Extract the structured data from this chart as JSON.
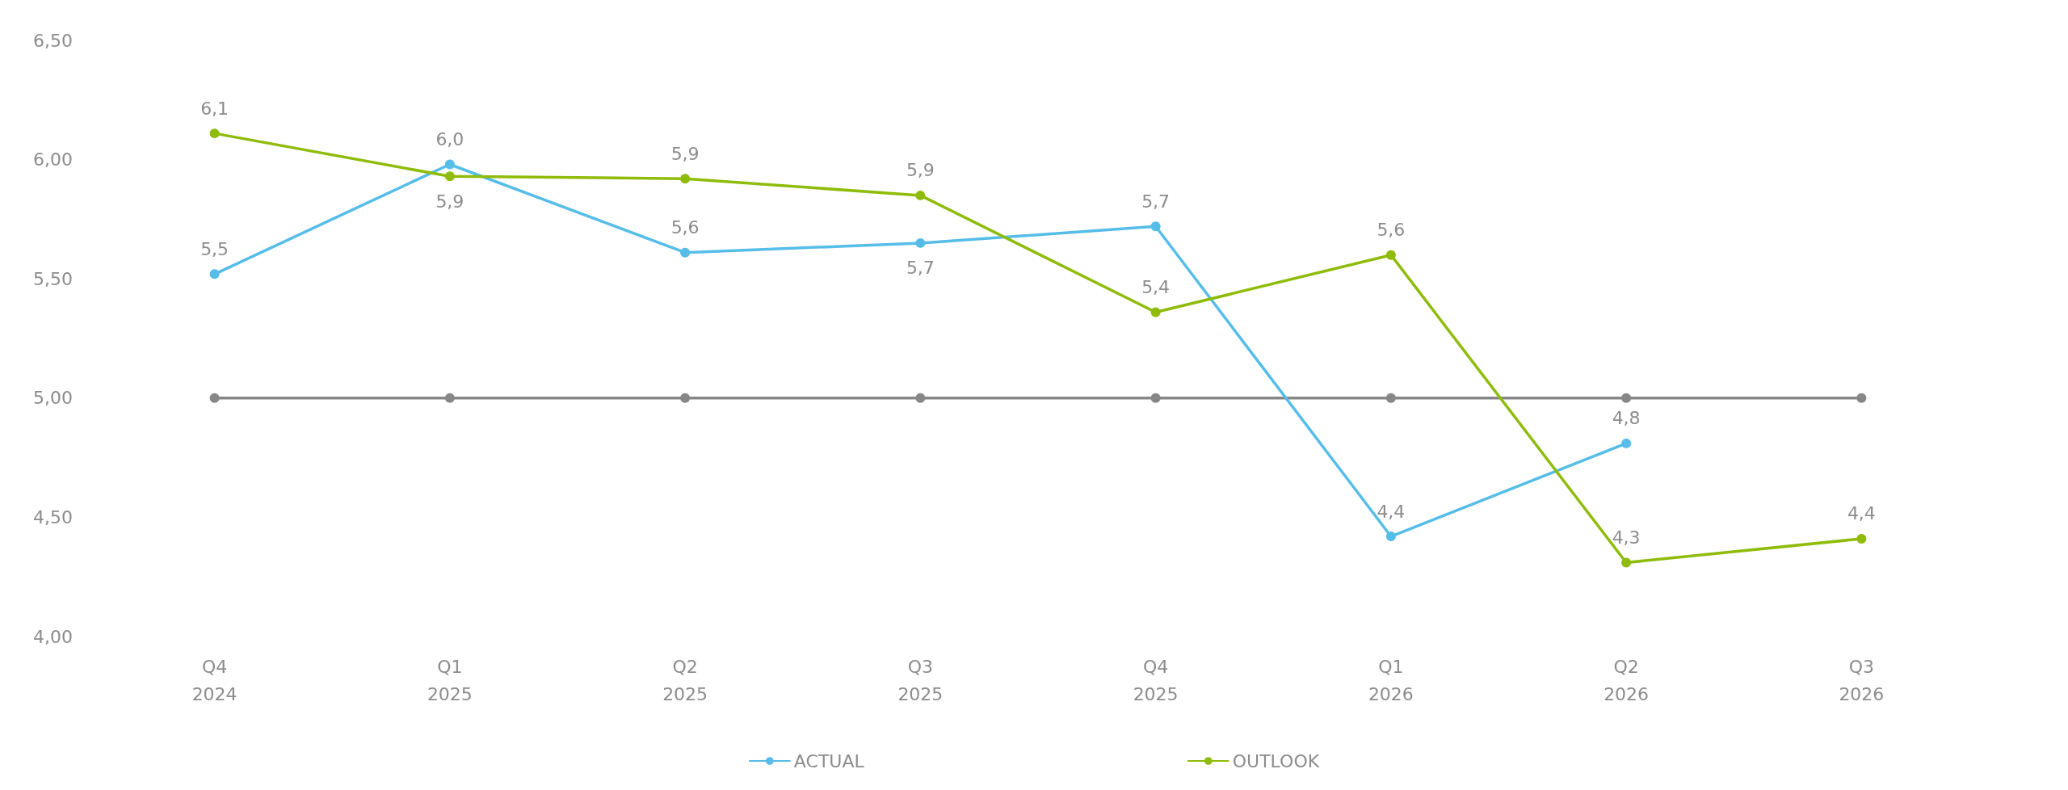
{
  "chart_data": {
    "type": "line",
    "categories": [
      "Q4\n2024",
      "Q1\n2025",
      "Q2\n2025",
      "Q3\n2025",
      "Q4\n2025",
      "Q1\n2026",
      "Q2\n2026",
      "Q3\n2026"
    ],
    "series": [
      {
        "name": "ACTUAL",
        "color": "#55bde8",
        "values": [
          5.52,
          5.98,
          5.61,
          5.65,
          5.72,
          4.42,
          4.81,
          null
        ],
        "value_labels": [
          "5,5",
          "6,0",
          "5,6",
          "5,7",
          "5,7",
          "4,4",
          "4,8",
          null
        ]
      },
      {
        "name": "OUTLOOK",
        "color": "#8fbc0a",
        "values": [
          6.11,
          5.93,
          5.92,
          5.85,
          5.36,
          5.6,
          4.31,
          4.41
        ],
        "value_labels": [
          "6,1",
          "5,9",
          "5,9",
          "5,9",
          "5,4",
          "5,6",
          "4,3",
          "4,4"
        ]
      },
      {
        "color": "#878787",
        "values": [
          5,
          5,
          5,
          5,
          5,
          5,
          5,
          5
        ]
      }
    ],
    "ylim": [
      4,
      6.5
    ],
    "yticks": [
      {
        "value": 4,
        "label": "4,00"
      },
      {
        "value": 4.5,
        "label": "4,50"
      },
      {
        "value": 5,
        "label": "5,00"
      },
      {
        "value": 5.5,
        "label": "5,50"
      },
      {
        "value": 6,
        "label": "6,00"
      },
      {
        "value": 6.5,
        "label": "6,50"
      }
    ],
    "grid": false,
    "legend": "bottom",
    "marker": "circle",
    "line_style": "solid"
  }
}
